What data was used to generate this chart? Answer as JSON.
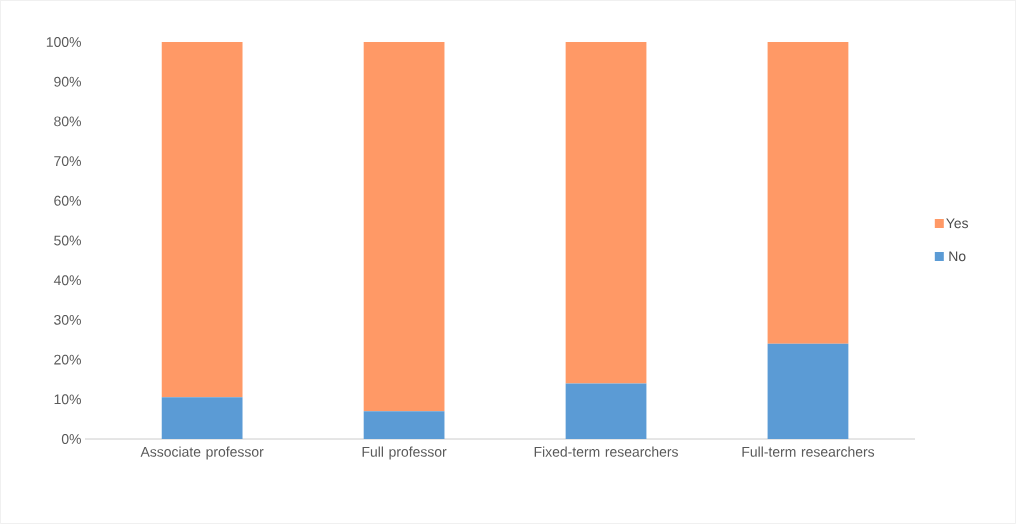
{
  "chart_data": {
    "type": "bar",
    "stacked": true,
    "categories": [
      "Associate professor",
      "Full professor",
      "Fixed-term researchers",
      "Full-term researchers"
    ],
    "series": [
      {
        "name": "No",
        "color": "#5b9bd5",
        "values": [
          10.5,
          7,
          14,
          24
        ]
      },
      {
        "name": "Yes",
        "color": "#ff9966",
        "values": [
          89.5,
          93,
          86,
          76
        ]
      }
    ],
    "ylim": [
      0,
      100
    ],
    "yticks": [
      {
        "value": 0,
        "label": "0%"
      },
      {
        "value": 10,
        "label": "10%"
      },
      {
        "value": 20,
        "label": "20%"
      },
      {
        "value": 30,
        "label": "30%"
      },
      {
        "value": 40,
        "label": "40%"
      },
      {
        "value": 50,
        "label": "50%"
      },
      {
        "value": 60,
        "label": "60%"
      },
      {
        "value": 70,
        "label": "70%"
      },
      {
        "value": 80,
        "label": "80%"
      },
      {
        "value": 90,
        "label": "90%"
      },
      {
        "value": 100,
        "label": "100%"
      }
    ],
    "grid": false,
    "legend": "right"
  }
}
